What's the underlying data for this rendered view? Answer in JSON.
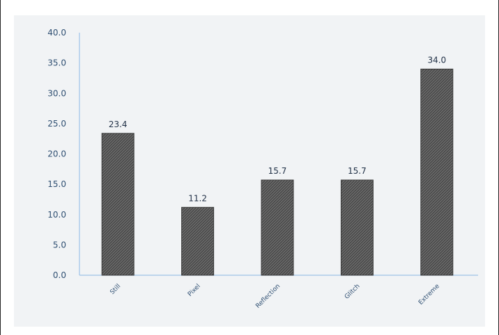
{
  "chart_data": {
    "type": "bar",
    "categories": [
      "Still",
      "Pixel",
      "Reflection",
      "Glitch",
      "Extreme"
    ],
    "values": [
      23.4,
      11.2,
      15.7,
      15.7,
      34.0
    ],
    "value_labels": [
      "23.4",
      "11.2",
      "15.7",
      "15.7",
      "34.0"
    ],
    "ylim": [
      0,
      40
    ],
    "y_ticks": [
      "0.0",
      "5.0",
      "10.0",
      "15.0",
      "20.0",
      "25.0",
      "30.0",
      "35.0",
      "40.0"
    ],
    "bar_color": "#585858",
    "axis_color": "#9ec3e8",
    "grid": false
  }
}
